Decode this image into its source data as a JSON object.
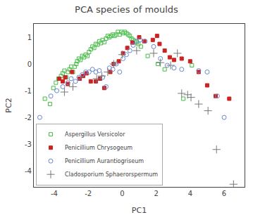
{
  "chart_data": {
    "type": "scatter",
    "title": "PCA species of moulds",
    "xlabel": "PC1",
    "ylabel": "PC2",
    "xlim": [
      -5.2,
      7.2
    ],
    "ylim": [
      -4.6,
      1.5
    ],
    "xticks": [
      -4,
      -2,
      0,
      2,
      4,
      6
    ],
    "yticks": [
      -4,
      -3,
      -2,
      -1,
      0,
      1
    ],
    "grid": false,
    "legend": "lower left",
    "series": [
      {
        "name": "Aspergillus Versicolor",
        "color": "#44bb44",
        "marker": "square-open",
        "x": [
          -4.55,
          -4.25,
          -4.05,
          -3.9,
          -3.75,
          -3.6,
          -3.5,
          -3.4,
          -3.3,
          -3.2,
          -3.1,
          -3.0,
          -2.9,
          -2.8,
          -2.7,
          -2.65,
          -2.55,
          -2.45,
          -2.35,
          -2.25,
          -2.15,
          -2.05,
          -1.95,
          -1.85,
          -1.75,
          -1.65,
          -1.55,
          -1.45,
          -1.35,
          -1.25,
          -1.15,
          -1.05,
          -0.95,
          -0.85,
          -0.75,
          -0.65,
          -0.55,
          -0.45,
          -0.35,
          -0.25,
          -0.15,
          -0.05,
          0.05,
          0.15,
          0.25,
          0.35,
          0.45,
          0.55,
          0.65,
          0.75,
          0.85,
          0.95,
          1.1,
          1.5,
          2.1,
          2.5,
          3.6,
          4.1
        ],
        "values": [
          -1.3,
          -1.5,
          -0.9,
          -0.7,
          -0.55,
          -0.45,
          -0.35,
          -0.25,
          -0.5,
          -0.3,
          -0.2,
          -0.1,
          -0.3,
          -0.1,
          0.0,
          0.1,
          0.2,
          0.15,
          0.3,
          0.25,
          0.35,
          0.3,
          0.45,
          0.55,
          0.65,
          0.6,
          0.75,
          0.72,
          0.85,
          0.78,
          0.9,
          0.82,
          0.95,
          1.05,
          1.0,
          1.05,
          1.1,
          1.05,
          1.1,
          1.2,
          1.1,
          1.2,
          1.15,
          1.2,
          1.15,
          1.1,
          1.05,
          0.95,
          0.9,
          0.85,
          0.8,
          0.75,
          0.65,
          0.3,
          0.0,
          -0.2,
          -1.3,
          -0.05
        ]
      },
      {
        "name": "Penicillium Chrysogeum",
        "color": "#cc2222",
        "marker": "square",
        "x": [
          -3.7,
          -3.5,
          -3.35,
          -3.2,
          -2.95,
          -2.5,
          -2.3,
          -2.1,
          -1.85,
          -1.55,
          -1.3,
          -1.05,
          -0.7,
          -0.5,
          -0.2,
          0.05,
          0.3,
          0.6,
          1.0,
          1.3,
          1.8,
          2.05,
          2.2,
          2.5,
          2.8,
          3.05,
          3.5,
          4.0,
          4.5,
          5.0,
          5.5,
          6.3
        ],
        "values": [
          -0.55,
          -0.65,
          -0.5,
          -0.75,
          -0.3,
          -0.55,
          -0.45,
          -0.35,
          -0.65,
          -0.65,
          -0.55,
          -0.9,
          -0.3,
          0.0,
          0.1,
          0.4,
          0.6,
          0.8,
          1.0,
          0.85,
          0.9,
          1.05,
          0.75,
          0.5,
          0.25,
          0.15,
          0.2,
          0.1,
          -0.3,
          -0.8,
          -1.2,
          -1.3
        ]
      },
      {
        "name": "Penicillium Aurantiogriseum",
        "color": "#6688cc",
        "marker": "circle-open",
        "x": [
          -4.85,
          -4.2,
          -3.85,
          -3.5,
          -3.2,
          -3.0,
          -2.75,
          -2.55,
          -2.35,
          -2.15,
          -1.95,
          -1.75,
          -1.55,
          -1.35,
          -1.15,
          -0.95,
          -0.75,
          -0.55,
          -0.35,
          -0.15,
          0.05,
          0.25,
          0.45,
          0.65,
          0.85,
          1.05,
          1.35,
          1.85,
          2.25,
          2.65,
          3.05,
          3.5,
          4.5,
          5.0,
          5.6,
          6.0
        ],
        "values": [
          -2.0,
          -1.2,
          -1.0,
          -0.85,
          -0.7,
          -0.55,
          -0.65,
          -0.5,
          -0.4,
          -0.3,
          -0.3,
          -0.2,
          -0.3,
          -0.25,
          -0.5,
          -0.85,
          -0.15,
          -0.2,
          0.0,
          -0.3,
          0.2,
          0.35,
          0.5,
          0.7,
          0.85,
          0.9,
          0.85,
          0.65,
          0.2,
          -0.05,
          -0.15,
          -0.2,
          -0.25,
          -0.3,
          -1.2,
          -2.0
        ]
      },
      {
        "name": "Cladosporium Sphaerorspermum",
        "color": "#777777",
        "marker": "plus",
        "x": [
          -3.4,
          -2.9,
          -1.5,
          -1.2,
          -0.85,
          -0.5,
          0.0,
          0.85,
          1.85,
          2.25,
          2.85,
          3.25,
          3.5,
          3.85,
          4.05,
          4.5,
          5.05,
          5.55,
          6.55
        ],
        "values": [
          -1.05,
          -0.85,
          -0.55,
          -0.45,
          -0.3,
          0.0,
          0.35,
          0.5,
          0.4,
          0.05,
          -0.05,
          0.4,
          -1.1,
          -1.15,
          -1.25,
          -1.5,
          -1.75,
          -3.2,
          -4.5
        ]
      }
    ]
  }
}
